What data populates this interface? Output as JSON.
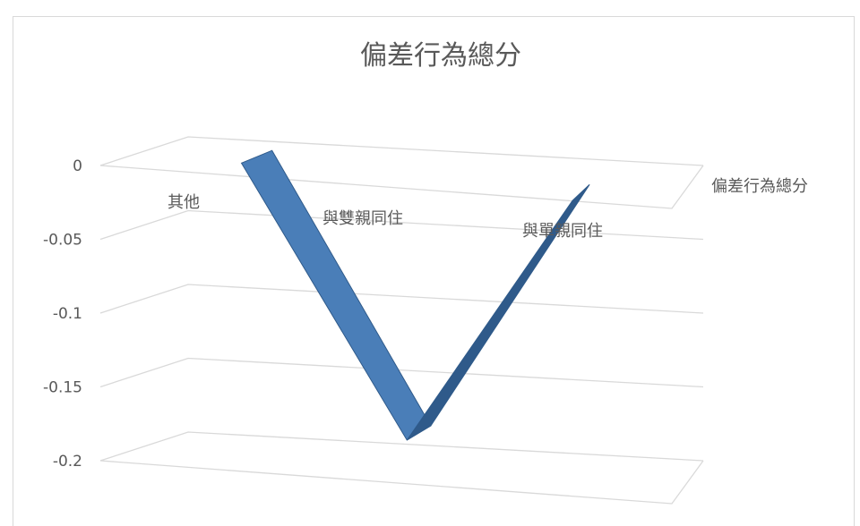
{
  "chart_data": {
    "type": "line",
    "subtype": "3d-line",
    "title": "偏差行為總分",
    "categories": [
      "其他",
      "與雙親同住",
      "與單親同住"
    ],
    "series": [
      {
        "name": "偏差行為總分",
        "values": [
          0,
          -0.18,
          -0.01
        ]
      }
    ],
    "y_ticks": [
      "0",
      "-0.05",
      "-0.1",
      "-0.15",
      "-0.2"
    ],
    "ylim": [
      -0.2,
      0
    ],
    "grid": true,
    "legend": "none",
    "colors": {
      "series": "#4a7eb8",
      "series_dark": "#2f5a8a",
      "grid": "#d9d9d9",
      "text": "#595959"
    }
  }
}
